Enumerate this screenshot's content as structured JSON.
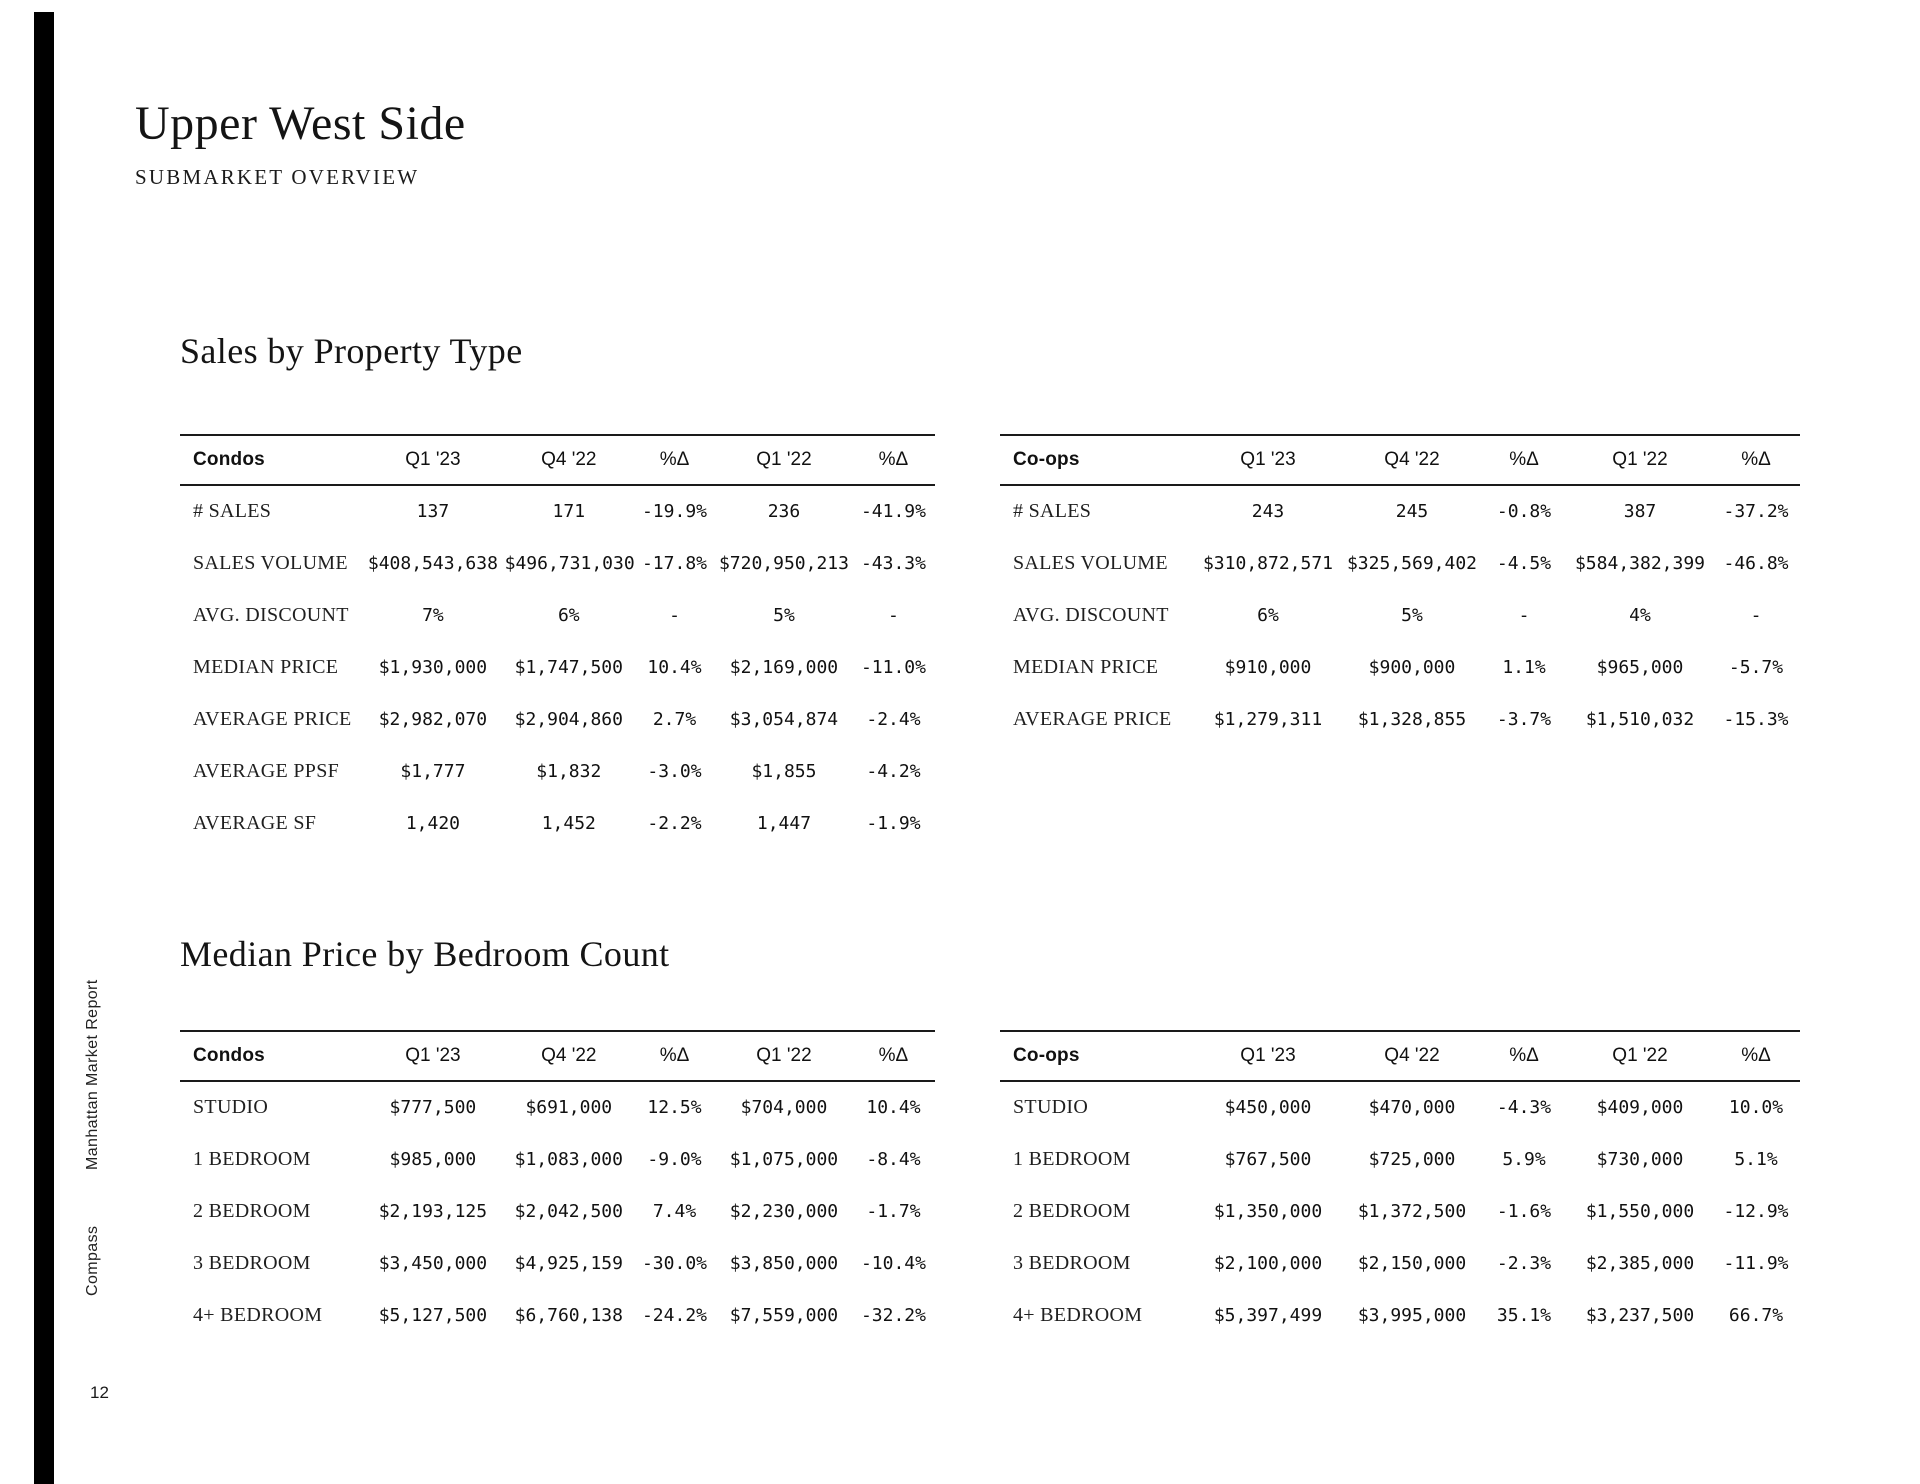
{
  "page": {
    "title": "Upper West Side",
    "subtitle": "SUBMARKET OVERVIEW",
    "brand": "Compass",
    "report_name": "Manhattan Market Report",
    "page_number": "12"
  },
  "colors": {
    "rail": "#000000",
    "text": "#1a1a1a"
  },
  "sections": {
    "sales_by_property": {
      "heading": "Sales by Property Type",
      "tables": [
        {
          "name": "Condos",
          "columns": [
            "Condos",
            "Q1 '23",
            "Q4 '22",
            "%Δ",
            "Q1 '22",
            "%Δ"
          ],
          "rows": [
            [
              "# SALES",
              "137",
              "171",
              "-19.9%",
              "236",
              "-41.9%"
            ],
            [
              "SALES VOLUME",
              "$408,543,638",
              "$496,731,030",
              "-17.8%",
              "$720,950,213",
              "-43.3%"
            ],
            [
              "AVG. DISCOUNT",
              "7%",
              "6%",
              "-",
              "5%",
              "-"
            ],
            [
              "MEDIAN PRICE",
              "$1,930,000",
              "$1,747,500",
              "10.4%",
              "$2,169,000",
              "-11.0%"
            ],
            [
              "AVERAGE PRICE",
              "$2,982,070",
              "$2,904,860",
              "2.7%",
              "$3,054,874",
              "-2.4%"
            ],
            [
              "AVERAGE PPSF",
              "$1,777",
              "$1,832",
              "-3.0%",
              "$1,855",
              "-4.2%"
            ],
            [
              "AVERAGE SF",
              "1,420",
              "1,452",
              "-2.2%",
              "1,447",
              "-1.9%"
            ]
          ]
        },
        {
          "name": "Co-ops",
          "columns": [
            "Co-ops",
            "Q1 '23",
            "Q4 '22",
            "%Δ",
            "Q1 '22",
            "%Δ"
          ],
          "rows": [
            [
              "# SALES",
              "243",
              "245",
              "-0.8%",
              "387",
              "-37.2%"
            ],
            [
              "SALES VOLUME",
              "$310,872,571",
              "$325,569,402",
              "-4.5%",
              "$584,382,399",
              "-46.8%"
            ],
            [
              "AVG. DISCOUNT",
              "6%",
              "5%",
              "-",
              "4%",
              "-"
            ],
            [
              "MEDIAN PRICE",
              "$910,000",
              "$900,000",
              "1.1%",
              "$965,000",
              "-5.7%"
            ],
            [
              "AVERAGE PRICE",
              "$1,279,311",
              "$1,328,855",
              "-3.7%",
              "$1,510,032",
              "-15.3%"
            ]
          ]
        }
      ]
    },
    "median_price_by_bedroom": {
      "heading": "Median Price by Bedroom Count",
      "tables": [
        {
          "name": "Condos",
          "columns": [
            "Condos",
            "Q1 '23",
            "Q4 '22",
            "%Δ",
            "Q1 '22",
            "%Δ"
          ],
          "rows": [
            [
              "STUDIO",
              "$777,500",
              "$691,000",
              "12.5%",
              "$704,000",
              "10.4%"
            ],
            [
              "1 BEDROOM",
              "$985,000",
              "$1,083,000",
              "-9.0%",
              "$1,075,000",
              "-8.4%"
            ],
            [
              "2 BEDROOM",
              "$2,193,125",
              "$2,042,500",
              "7.4%",
              "$2,230,000",
              "-1.7%"
            ],
            [
              "3 BEDROOM",
              "$3,450,000",
              "$4,925,159",
              "-30.0%",
              "$3,850,000",
              "-10.4%"
            ],
            [
              "4+ BEDROOM",
              "$5,127,500",
              "$6,760,138",
              "-24.2%",
              "$7,559,000",
              "-32.2%"
            ]
          ]
        },
        {
          "name": "Co-ops",
          "columns": [
            "Co-ops",
            "Q1 '23",
            "Q4 '22",
            "%Δ",
            "Q1 '22",
            "%Δ"
          ],
          "rows": [
            [
              "STUDIO",
              "$450,000",
              "$470,000",
              "-4.3%",
              "$409,000",
              "10.0%"
            ],
            [
              "1 BEDROOM",
              "$767,500",
              "$725,000",
              "5.9%",
              "$730,000",
              "5.1%"
            ],
            [
              "2 BEDROOM",
              "$1,350,000",
              "$1,372,500",
              "-1.6%",
              "$1,550,000",
              "-12.9%"
            ],
            [
              "3 BEDROOM",
              "$2,100,000",
              "$2,150,000",
              "-2.3%",
              "$2,385,000",
              "-11.9%"
            ],
            [
              "4+ BEDROOM",
              "$5,397,499",
              "$3,995,000",
              "35.1%",
              "$3,237,500",
              "66.7%"
            ]
          ]
        }
      ]
    }
  }
}
